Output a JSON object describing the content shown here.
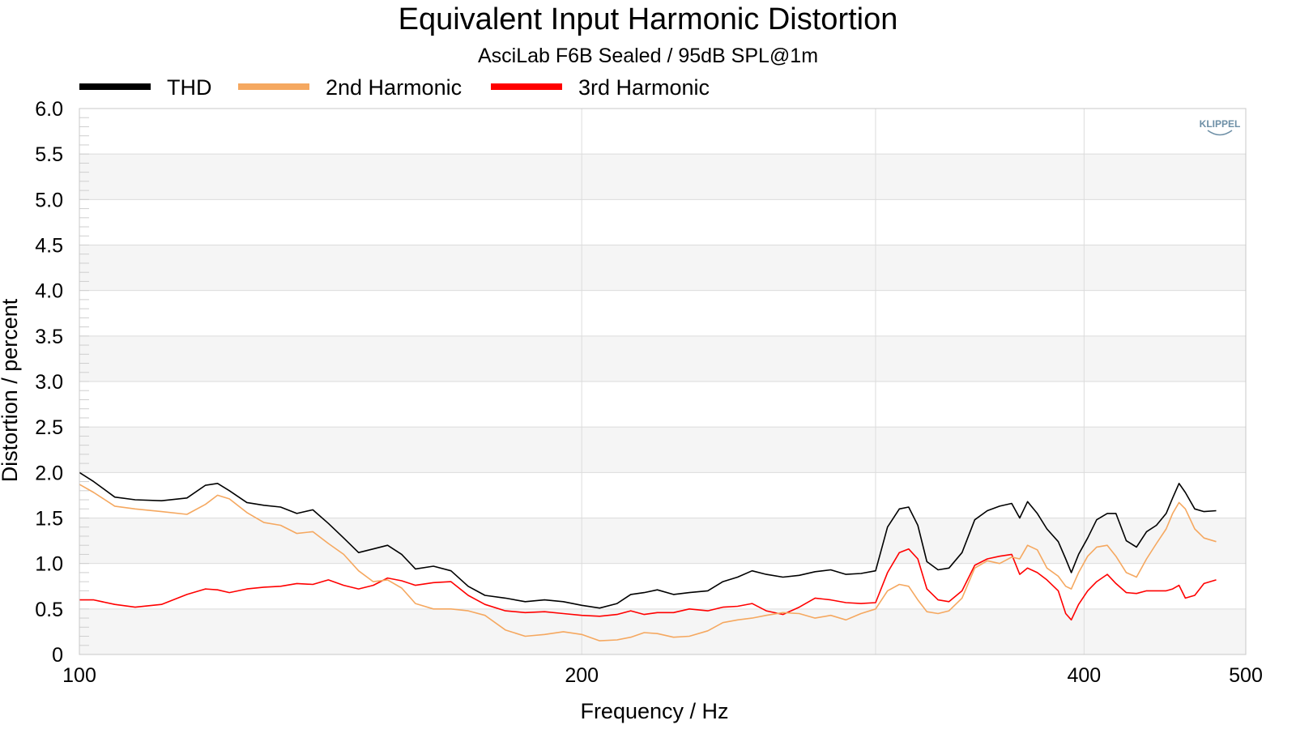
{
  "chart_data": {
    "type": "line",
    "title": "Equivalent Input Harmonic Distortion",
    "subtitle": "AsciLab F6B Sealed / 95dB SPL@1m",
    "xlabel": "Frequency / Hz",
    "ylabel": "Distortion / percent",
    "x_scale": "log",
    "xlim": [
      100,
      500
    ],
    "ylim": [
      0,
      6
    ],
    "x_ticks": [
      100,
      200,
      400,
      500
    ],
    "x_tick_labels": [
      "100",
      "200",
      "400",
      "500"
    ],
    "x_gridlines": [
      200,
      300,
      400
    ],
    "y_ticks": [
      0,
      0.5,
      1,
      1.5,
      2,
      2.5,
      3,
      3.5,
      4,
      4.5,
      5,
      5.5,
      6
    ],
    "y_tick_labels": [
      "0",
      "0.5",
      "1.0",
      "1.5",
      "2.0",
      "2.5",
      "3.0",
      "3.5",
      "4.0",
      "4.5",
      "5.0",
      "5.5",
      "6.0"
    ],
    "grid": true,
    "legend_position": "top-left",
    "logo": "KLIPPEL",
    "series": [
      {
        "name": "THD",
        "color": "#000000",
        "points": [
          [
            100,
            2.0
          ],
          [
            102,
            1.9
          ],
          [
            105,
            1.73
          ],
          [
            108,
            1.7
          ],
          [
            112,
            1.69
          ],
          [
            116,
            1.72
          ],
          [
            119,
            1.86
          ],
          [
            121,
            1.88
          ],
          [
            123,
            1.8
          ],
          [
            126,
            1.67
          ],
          [
            129,
            1.64
          ],
          [
            132,
            1.62
          ],
          [
            135,
            1.55
          ],
          [
            138,
            1.59
          ],
          [
            141,
            1.44
          ],
          [
            144,
            1.28
          ],
          [
            147,
            1.12
          ],
          [
            150,
            1.16
          ],
          [
            153,
            1.2
          ],
          [
            156,
            1.1
          ],
          [
            159,
            0.94
          ],
          [
            163,
            0.97
          ],
          [
            167,
            0.92
          ],
          [
            171,
            0.75
          ],
          [
            175,
            0.65
          ],
          [
            180,
            0.62
          ],
          [
            185,
            0.58
          ],
          [
            190,
            0.6
          ],
          [
            195,
            0.58
          ],
          [
            200,
            0.54
          ],
          [
            205,
            0.51
          ],
          [
            210,
            0.56
          ],
          [
            214,
            0.66
          ],
          [
            218,
            0.68
          ],
          [
            222,
            0.71
          ],
          [
            227,
            0.66
          ],
          [
            232,
            0.68
          ],
          [
            238,
            0.7
          ],
          [
            243,
            0.8
          ],
          [
            248,
            0.85
          ],
          [
            253,
            0.92
          ],
          [
            258,
            0.88
          ],
          [
            264,
            0.85
          ],
          [
            270,
            0.87
          ],
          [
            276,
            0.91
          ],
          [
            282,
            0.93
          ],
          [
            288,
            0.88
          ],
          [
            294,
            0.89
          ],
          [
            300,
            0.92
          ],
          [
            305,
            1.4
          ],
          [
            310,
            1.6
          ],
          [
            314,
            1.62
          ],
          [
            318,
            1.42
          ],
          [
            322,
            1.02
          ],
          [
            327,
            0.93
          ],
          [
            332,
            0.95
          ],
          [
            338,
            1.12
          ],
          [
            344,
            1.48
          ],
          [
            350,
            1.58
          ],
          [
            356,
            1.63
          ],
          [
            362,
            1.66
          ],
          [
            366,
            1.5
          ],
          [
            370,
            1.68
          ],
          [
            375,
            1.55
          ],
          [
            380,
            1.38
          ],
          [
            386,
            1.24
          ],
          [
            390,
            1.05
          ],
          [
            393,
            0.9
          ],
          [
            397,
            1.1
          ],
          [
            402,
            1.28
          ],
          [
            407,
            1.48
          ],
          [
            413,
            1.55
          ],
          [
            418,
            1.55
          ],
          [
            424,
            1.25
          ],
          [
            430,
            1.18
          ],
          [
            436,
            1.35
          ],
          [
            442,
            1.42
          ],
          [
            448,
            1.55
          ],
          [
            452,
            1.72
          ],
          [
            456,
            1.88
          ],
          [
            460,
            1.78
          ],
          [
            466,
            1.6
          ],
          [
            472,
            1.57
          ],
          [
            480,
            1.58
          ]
        ]
      },
      {
        "name": "2nd Harmonic",
        "color": "#f5a860",
        "points": [
          [
            100,
            1.87
          ],
          [
            102,
            1.78
          ],
          [
            105,
            1.63
          ],
          [
            108,
            1.6
          ],
          [
            112,
            1.57
          ],
          [
            116,
            1.54
          ],
          [
            119,
            1.65
          ],
          [
            121,
            1.75
          ],
          [
            123,
            1.71
          ],
          [
            126,
            1.56
          ],
          [
            129,
            1.45
          ],
          [
            132,
            1.42
          ],
          [
            135,
            1.33
          ],
          [
            138,
            1.35
          ],
          [
            141,
            1.22
          ],
          [
            144,
            1.1
          ],
          [
            147,
            0.92
          ],
          [
            150,
            0.8
          ],
          [
            153,
            0.82
          ],
          [
            156,
            0.73
          ],
          [
            159,
            0.56
          ],
          [
            163,
            0.5
          ],
          [
            167,
            0.5
          ],
          [
            171,
            0.48
          ],
          [
            175,
            0.43
          ],
          [
            180,
            0.27
          ],
          [
            185,
            0.2
          ],
          [
            190,
            0.22
          ],
          [
            195,
            0.25
          ],
          [
            200,
            0.22
          ],
          [
            205,
            0.15
          ],
          [
            210,
            0.16
          ],
          [
            214,
            0.19
          ],
          [
            218,
            0.24
          ],
          [
            222,
            0.23
          ],
          [
            227,
            0.19
          ],
          [
            232,
            0.2
          ],
          [
            238,
            0.26
          ],
          [
            243,
            0.35
          ],
          [
            248,
            0.38
          ],
          [
            253,
            0.4
          ],
          [
            258,
            0.43
          ],
          [
            264,
            0.46
          ],
          [
            270,
            0.45
          ],
          [
            276,
            0.4
          ],
          [
            282,
            0.43
          ],
          [
            288,
            0.38
          ],
          [
            294,
            0.45
          ],
          [
            300,
            0.5
          ],
          [
            305,
            0.7
          ],
          [
            310,
            0.77
          ],
          [
            314,
            0.75
          ],
          [
            318,
            0.6
          ],
          [
            322,
            0.47
          ],
          [
            327,
            0.45
          ],
          [
            332,
            0.48
          ],
          [
            338,
            0.62
          ],
          [
            344,
            0.95
          ],
          [
            350,
            1.03
          ],
          [
            356,
            1.0
          ],
          [
            362,
            1.07
          ],
          [
            366,
            1.05
          ],
          [
            370,
            1.2
          ],
          [
            375,
            1.15
          ],
          [
            380,
            0.95
          ],
          [
            386,
            0.86
          ],
          [
            390,
            0.75
          ],
          [
            393,
            0.72
          ],
          [
            397,
            0.9
          ],
          [
            402,
            1.08
          ],
          [
            407,
            1.18
          ],
          [
            413,
            1.2
          ],
          [
            418,
            1.08
          ],
          [
            424,
            0.9
          ],
          [
            430,
            0.85
          ],
          [
            436,
            1.05
          ],
          [
            442,
            1.22
          ],
          [
            448,
            1.38
          ],
          [
            452,
            1.55
          ],
          [
            456,
            1.67
          ],
          [
            460,
            1.6
          ],
          [
            466,
            1.38
          ],
          [
            472,
            1.28
          ],
          [
            480,
            1.24
          ]
        ]
      },
      {
        "name": "3rd Harmonic",
        "color": "#ff0000",
        "points": [
          [
            100,
            0.6
          ],
          [
            102,
            0.6
          ],
          [
            105,
            0.55
          ],
          [
            108,
            0.52
          ],
          [
            112,
            0.55
          ],
          [
            116,
            0.66
          ],
          [
            119,
            0.72
          ],
          [
            121,
            0.71
          ],
          [
            123,
            0.68
          ],
          [
            126,
            0.72
          ],
          [
            129,
            0.74
          ],
          [
            132,
            0.75
          ],
          [
            135,
            0.78
          ],
          [
            138,
            0.77
          ],
          [
            141,
            0.82
          ],
          [
            144,
            0.76
          ],
          [
            147,
            0.72
          ],
          [
            150,
            0.76
          ],
          [
            153,
            0.84
          ],
          [
            156,
            0.81
          ],
          [
            159,
            0.76
          ],
          [
            163,
            0.79
          ],
          [
            167,
            0.8
          ],
          [
            171,
            0.65
          ],
          [
            175,
            0.55
          ],
          [
            180,
            0.48
          ],
          [
            185,
            0.46
          ],
          [
            190,
            0.47
          ],
          [
            195,
            0.45
          ],
          [
            200,
            0.43
          ],
          [
            205,
            0.42
          ],
          [
            210,
            0.44
          ],
          [
            214,
            0.48
          ],
          [
            218,
            0.44
          ],
          [
            222,
            0.46
          ],
          [
            227,
            0.46
          ],
          [
            232,
            0.5
          ],
          [
            238,
            0.48
          ],
          [
            243,
            0.52
          ],
          [
            248,
            0.53
          ],
          [
            253,
            0.56
          ],
          [
            258,
            0.48
          ],
          [
            264,
            0.44
          ],
          [
            270,
            0.52
          ],
          [
            276,
            0.62
          ],
          [
            282,
            0.6
          ],
          [
            288,
            0.57
          ],
          [
            294,
            0.56
          ],
          [
            300,
            0.57
          ],
          [
            305,
            0.9
          ],
          [
            310,
            1.12
          ],
          [
            314,
            1.16
          ],
          [
            318,
            1.05
          ],
          [
            322,
            0.72
          ],
          [
            327,
            0.6
          ],
          [
            332,
            0.58
          ],
          [
            338,
            0.7
          ],
          [
            344,
            0.98
          ],
          [
            350,
            1.05
          ],
          [
            356,
            1.08
          ],
          [
            362,
            1.1
          ],
          [
            366,
            0.88
          ],
          [
            370,
            0.95
          ],
          [
            375,
            0.9
          ],
          [
            380,
            0.82
          ],
          [
            386,
            0.7
          ],
          [
            390,
            0.45
          ],
          [
            393,
            0.38
          ],
          [
            397,
            0.55
          ],
          [
            402,
            0.7
          ],
          [
            407,
            0.8
          ],
          [
            413,
            0.88
          ],
          [
            418,
            0.78
          ],
          [
            424,
            0.68
          ],
          [
            430,
            0.67
          ],
          [
            436,
            0.7
          ],
          [
            442,
            0.7
          ],
          [
            448,
            0.7
          ],
          [
            452,
            0.72
          ],
          [
            456,
            0.76
          ],
          [
            460,
            0.62
          ],
          [
            466,
            0.65
          ],
          [
            472,
            0.78
          ],
          [
            480,
            0.82
          ]
        ]
      }
    ]
  }
}
